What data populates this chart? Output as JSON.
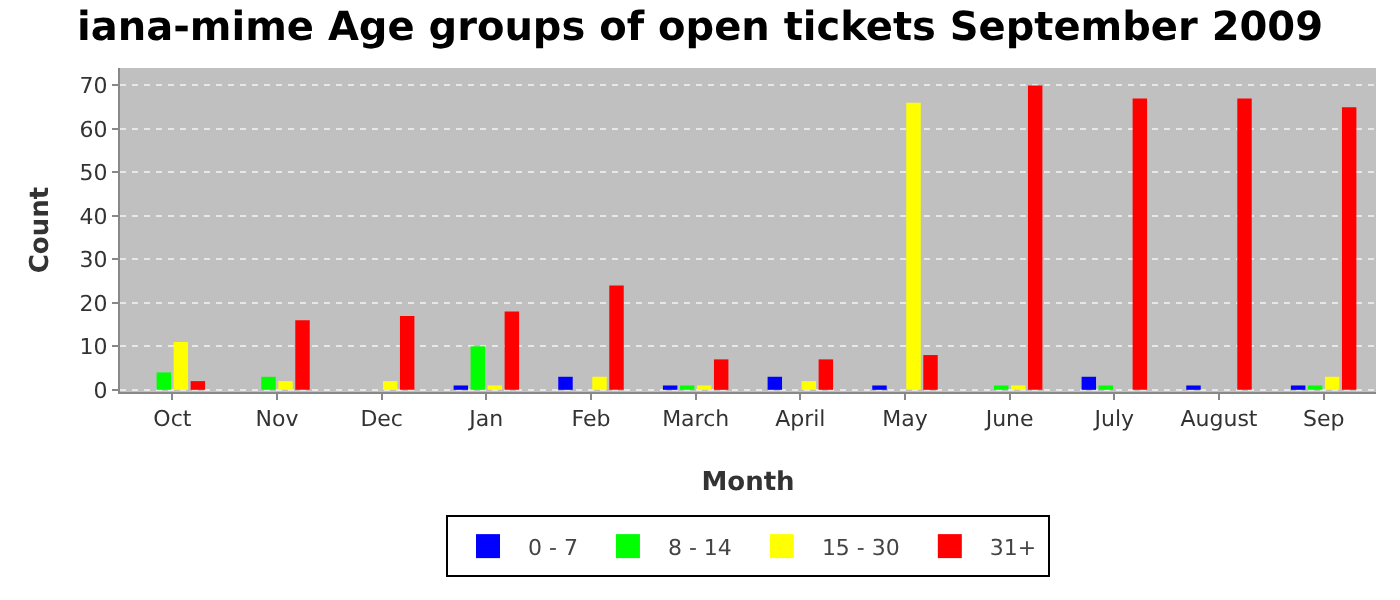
{
  "chart_data": {
    "type": "bar",
    "title": "iana-mime Age groups of open tickets September 2009",
    "xlabel": "Month",
    "ylabel": "Count",
    "categories": [
      "Oct",
      "Nov",
      "Dec",
      "Jan",
      "Feb",
      "March",
      "April",
      "May",
      "June",
      "July",
      "August",
      "Sep"
    ],
    "series": [
      {
        "name": "0 - 7",
        "color": "#0000ff",
        "values": [
          0,
          0,
          0,
          1,
          3,
          1,
          3,
          1,
          0,
          3,
          1,
          1
        ]
      },
      {
        "name": "8 - 14",
        "color": "#00ff00",
        "values": [
          4,
          3,
          0,
          10,
          0,
          1,
          0,
          0,
          1,
          1,
          0,
          1
        ]
      },
      {
        "name": "15 - 30",
        "color": "#ffff00",
        "values": [
          11,
          2,
          2,
          1,
          3,
          1,
          2,
          66,
          1,
          0,
          0,
          3
        ]
      },
      {
        "name": "31+",
        "color": "#ff0000",
        "values": [
          2,
          16,
          17,
          18,
          24,
          7,
          7,
          8,
          70,
          67,
          67,
          65
        ]
      }
    ],
    "ylim": [
      -0.5,
      74
    ],
    "yticks": [
      0,
      10,
      20,
      30,
      40,
      50,
      60,
      70
    ],
    "grid": "y",
    "legend": "bottom"
  }
}
